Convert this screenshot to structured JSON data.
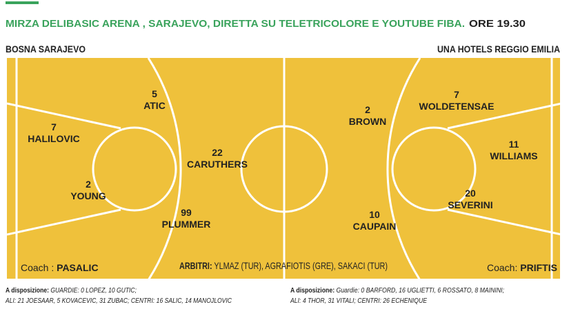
{
  "header": {
    "venue": "MIRZA DELIBASIC ARENA , SARAJEVO, DIRETTA SU TELETRICOLORE E YOUTUBE FIBA.",
    "time": "ORE 19.30"
  },
  "teams": [
    {
      "name": "BOSNA SARAJEVO",
      "coach_label": "Coach :",
      "coach": "PASALIC",
      "players": [
        {
          "number": "5",
          "name": "ATIC"
        },
        {
          "number": "7",
          "name": "HALILOVIC"
        },
        {
          "number": "2",
          "name": "YOUNG"
        },
        {
          "number": "22",
          "name": "CARUTHERS"
        },
        {
          "number": "99",
          "name": "PLUMMER"
        }
      ],
      "bench": {
        "label": "A disposizione:",
        "line1": "GUARDIE: 0 LOPEZ, 10 GUTIC;",
        "line2": "ALI: 21 JOESAAR, 5 KOVACEVIC, 31 ZUBAC; CENTRI: 16 SALIC, 14 MANOJLOVIC"
      }
    },
    {
      "name": "UNA HOTELS REGGIO EMILIA",
      "coach_label": "Coach:",
      "coach": "PRIFTIS",
      "players": [
        {
          "number": "2",
          "name": "BROWN"
        },
        {
          "number": "7",
          "name": "WOLDETENSAE"
        },
        {
          "number": "11",
          "name": "WILLIAMS"
        },
        {
          "number": "20",
          "name": "SEVERINI"
        },
        {
          "number": "10",
          "name": "CAUPAIN"
        }
      ],
      "bench": {
        "label": "A disposizione:",
        "line1": "Guardie: 0 BARFORD, 16 UGLIETTI, 6 ROSSATO, 8 MAININI;",
        "line2": "ALI: 4 THOR, 31 VITALI; CENTRI: 26 ECHENIQUE"
      }
    }
  ],
  "referees": {
    "label": "ARBITRI:",
    "names": "YLMAZ (TUR), AGRAFIOTIS (GRE), SAKACI (TUR)"
  }
}
